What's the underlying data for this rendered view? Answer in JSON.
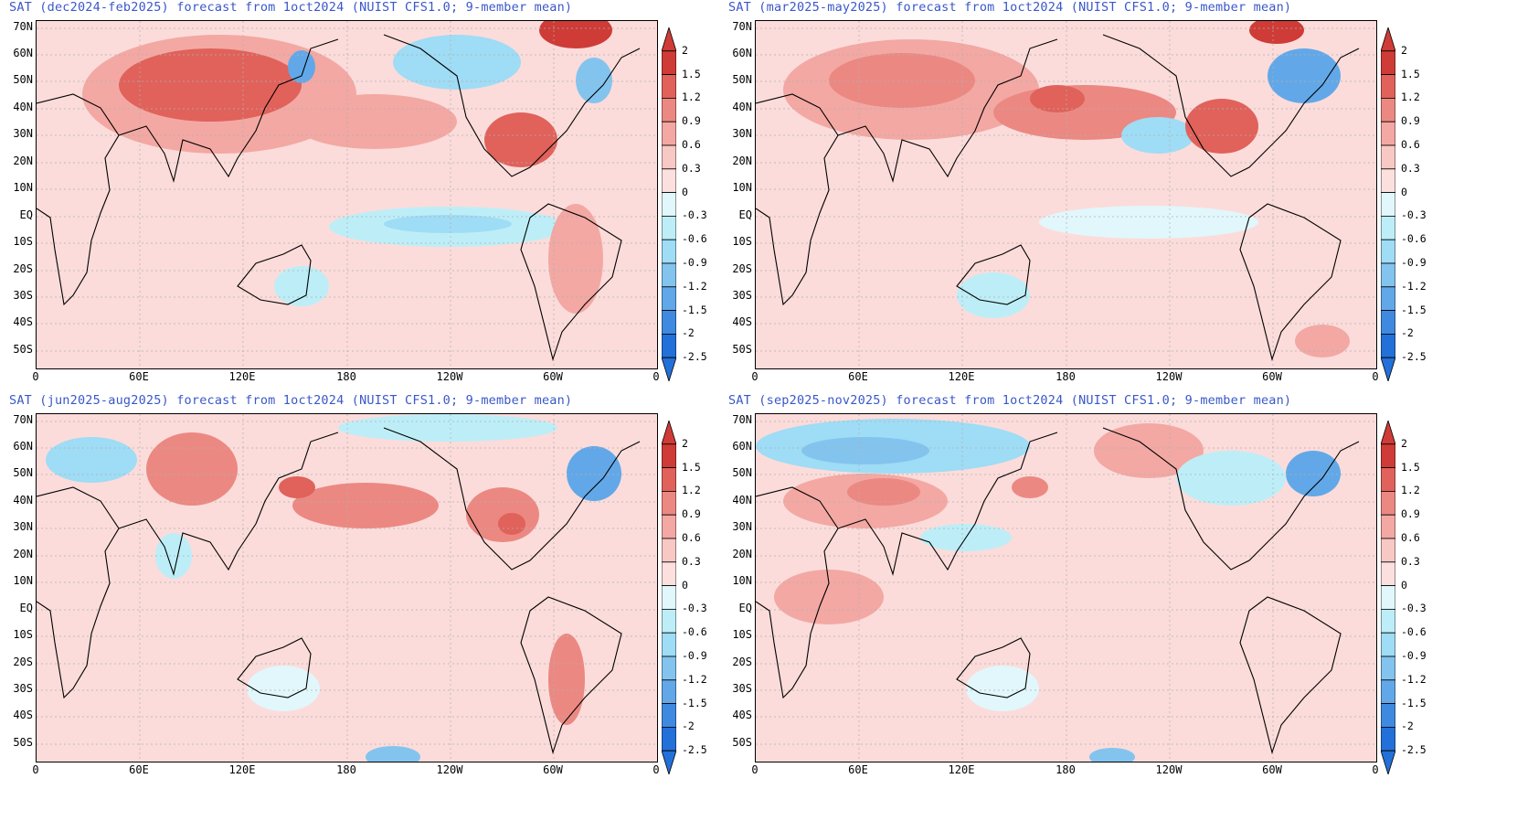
{
  "panels": [
    {
      "title": "SAT (dec2024-feb2025) forecast from 1oct2024 (NUIST CFS1.0; 9-member mean)"
    },
    {
      "title": "SAT (mar2025-may2025) forecast from 1oct2024 (NUIST CFS1.0; 9-member mean)"
    },
    {
      "title": "SAT (jun2025-aug2025) forecast from 1oct2024 (NUIST CFS1.0; 9-member mean)"
    },
    {
      "title": "SAT (sep2025-nov2025) forecast from 1oct2024 (NUIST CFS1.0; 9-member mean)"
    }
  ],
  "lat_labels": [
    "70N",
    "60N",
    "50N",
    "40N",
    "30N",
    "20N",
    "10N",
    "EQ",
    "10S",
    "20S",
    "30S",
    "40S",
    "50S"
  ],
  "lon_labels": [
    "0",
    "60E",
    "120E",
    "180",
    "120W",
    "60W",
    "0"
  ],
  "colorbar": {
    "levels": [
      "2",
      "1.5",
      "1.2",
      "0.9",
      "0.6",
      "0.3",
      "0",
      "-0.3",
      "-0.6",
      "-0.9",
      "-1.2",
      "-1.5",
      "-2",
      "-2.5"
    ],
    "colors": [
      "#cf3b36",
      "#e0625b",
      "#ec8882",
      "#f3a8a3",
      "#f8c8c4",
      "#fbe0de",
      "#ffffff",
      "#e1f7fb",
      "#bdeef8",
      "#9fdcf5",
      "#83c4ef",
      "#62a8e8",
      "#3f8ae0",
      "#2370d8"
    ]
  },
  "colors": {
    "title": "#3a57c9",
    "background_anomaly": "#fbdcda"
  }
}
